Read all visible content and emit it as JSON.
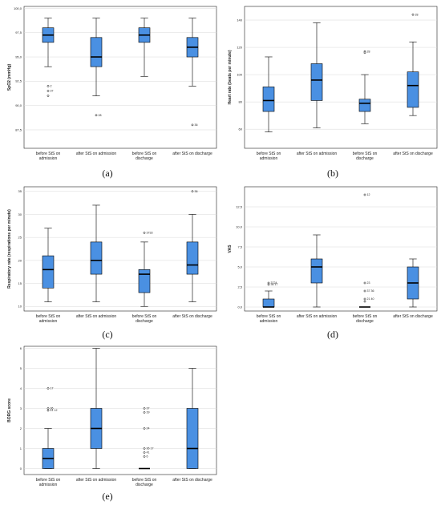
{
  "chart_data": [
    {
      "id": "a",
      "type": "box",
      "panel_label": "(a)",
      "ylabel": "SpO2 (mmHg)",
      "yticks": [
        87.5,
        90.0,
        92.5,
        95.0,
        97.5,
        100.0
      ],
      "ytick_labels": [
        "87,5",
        "90,0",
        "92,5",
        "95,0",
        "97,5",
        "100,0"
      ],
      "ylim": [
        85.6,
        100.2
      ],
      "categories": [
        "before StS on admission",
        "after StS on admission",
        "before StS on discharge",
        "after StS on discharge"
      ],
      "boxes": [
        {
          "q1": 96.5,
          "median": 97.25,
          "q3": 98.0,
          "whisker_low": 94.0,
          "whisker_high": 99.0
        },
        {
          "q1": 94.0,
          "median": 95.0,
          "q3": 97.0,
          "whisker_low": 91.0,
          "whisker_high": 99.0
        },
        {
          "q1": 96.5,
          "median": 97.25,
          "q3": 98.0,
          "whisker_low": 93.0,
          "whisker_high": 99.0
        },
        {
          "q1": 95.0,
          "median": 96.0,
          "q3": 97.0,
          "whisker_low": 92.0,
          "whisker_high": 99.0
        }
      ],
      "outliers": [
        {
          "category": 0,
          "value": 92.0,
          "label": "2"
        },
        {
          "category": 0,
          "value": 91.5,
          "label": "37"
        },
        {
          "category": 0,
          "value": 91.0,
          "label": ""
        },
        {
          "category": 1,
          "value": 89.0,
          "label": "28"
        },
        {
          "category": 3,
          "value": 88.0,
          "label": "36"
        }
      ]
    },
    {
      "id": "b",
      "type": "box",
      "panel_label": "(b)",
      "ylabel": "Heart rate (beats per minute)",
      "yticks": [
        60,
        80,
        100,
        120,
        140
      ],
      "ytick_labels": [
        "60",
        "80",
        "100",
        "120",
        "140"
      ],
      "ylim": [
        46,
        150
      ],
      "categories": [
        "before StS on admission",
        "after StS on admission",
        "before StS on discharge",
        "after StS on discharge"
      ],
      "boxes": [
        {
          "q1": 73,
          "median": 81,
          "q3": 91,
          "whisker_low": 58,
          "whisker_high": 113
        },
        {
          "q1": 81,
          "median": 96,
          "q3": 108,
          "whisker_low": 61,
          "whisker_high": 138
        },
        {
          "q1": 73,
          "median": 79,
          "q3": 82,
          "whisker_low": 64,
          "whisker_high": 100
        },
        {
          "q1": 76,
          "median": 92,
          "q3": 102,
          "whisker_low": 70,
          "whisker_high": 124
        }
      ],
      "outliers": [
        {
          "category": 2,
          "value": 117,
          "label": "28"
        },
        {
          "category": 2,
          "value": 116,
          "label": ""
        },
        {
          "category": 3,
          "value": 144,
          "label": "28"
        }
      ]
    },
    {
      "id": "c",
      "type": "box",
      "panel_label": "(c)",
      "ylabel": "Respiratory rate (respirations per minute)",
      "yticks": [
        10,
        15,
        20,
        25,
        30,
        35
      ],
      "ytick_labels": [
        "10",
        "15",
        "20",
        "25",
        "30",
        "35"
      ],
      "ylim": [
        9,
        36
      ],
      "categories": [
        "before StS on admission",
        "after StS on admission",
        "before StS on discharge",
        "after StS on discharge"
      ],
      "boxes": [
        {
          "q1": 14,
          "median": 18,
          "q3": 21,
          "whisker_low": 11,
          "whisker_high": 27
        },
        {
          "q1": 17,
          "median": 20,
          "q3": 24,
          "whisker_low": 11,
          "whisker_high": 32
        },
        {
          "q1": 13,
          "median": 17,
          "q3": 18,
          "whisker_low": 10,
          "whisker_high": 24
        },
        {
          "q1": 17,
          "median": 19,
          "q3": 24,
          "whisker_low": 11,
          "whisker_high": 30
        }
      ],
      "outliers": [
        {
          "category": 2,
          "value": 26,
          "label": "3733"
        },
        {
          "category": 3,
          "value": 35,
          "label": "36"
        }
      ]
    },
    {
      "id": "d",
      "type": "box",
      "panel_label": "(d)",
      "ylabel": "VAS",
      "yticks": [
        0.0,
        2.5,
        5.0,
        7.5,
        10.0,
        12.5
      ],
      "ytick_labels": [
        "0,0",
        "2,5",
        "5,0",
        "7,5",
        "10,0",
        "12,5"
      ],
      "ylim": [
        -0.5,
        15.0
      ],
      "categories": [
        "before StS on admission",
        "after StS on admission",
        "before StS on discharge",
        "after StS on discharge"
      ],
      "boxes": [
        {
          "q1": 0,
          "median": 0,
          "q3": 1,
          "whisker_low": 0,
          "whisker_high": 2
        },
        {
          "q1": 3,
          "median": 5,
          "q3": 6,
          "whisker_low": 0,
          "whisker_high": 9
        },
        {
          "q1": 0,
          "median": 0,
          "q3": 0,
          "whisker_low": 0,
          "whisker_high": 0
        },
        {
          "q1": 1,
          "median": 3,
          "q3": 5,
          "whisker_low": 0,
          "whisker_high": 6
        }
      ],
      "outliers": [
        {
          "category": 0,
          "value": 3,
          "label": "3724"
        },
        {
          "category": 0,
          "value": 2.8,
          "label": "36 17"
        },
        {
          "category": 2,
          "value": 14,
          "label": "12"
        },
        {
          "category": 2,
          "value": 3,
          "label": "23"
        },
        {
          "category": 2,
          "value": 2,
          "label": "37 36"
        },
        {
          "category": 2,
          "value": 1,
          "label": "21 40"
        },
        {
          "category": 2,
          "value": 0.7,
          "label": ""
        }
      ]
    },
    {
      "id": "e",
      "type": "box",
      "panel_label": "(e)",
      "ylabel": "BORG score",
      "yticks": [
        0,
        1,
        2,
        3,
        4,
        5,
        6
      ],
      "ytick_labels": [
        "0",
        "1",
        "2",
        "3",
        "4",
        "5",
        "6"
      ],
      "ylim": [
        -0.3,
        6.1
      ],
      "categories": [
        "before StS on admission",
        "after StS on admission",
        "before StS on discharge",
        "after StS on discharge"
      ],
      "boxes": [
        {
          "q1": 0,
          "median": 0.5,
          "q3": 1,
          "whisker_low": 0,
          "whisker_high": 2
        },
        {
          "q1": 1,
          "median": 2,
          "q3": 3,
          "whisker_low": 0,
          "whisker_high": 6
        },
        {
          "q1": 0,
          "median": 0,
          "q3": 0,
          "whisker_low": 0,
          "whisker_high": 0
        },
        {
          "q1": 0,
          "median": 1,
          "q3": 3,
          "whisker_low": 0,
          "whisker_high": 5
        }
      ],
      "outliers": [
        {
          "category": 0,
          "value": 4,
          "label": "17"
        },
        {
          "category": 0,
          "value": 3,
          "label": "36"
        },
        {
          "category": 0,
          "value": 2.9,
          "label": "41 12"
        },
        {
          "category": 2,
          "value": 3,
          "label": "37"
        },
        {
          "category": 2,
          "value": 2.8,
          "label": "39"
        },
        {
          "category": 2,
          "value": 2,
          "label": "24"
        },
        {
          "category": 2,
          "value": 1,
          "label": "36 17"
        },
        {
          "category": 2,
          "value": 0.8,
          "label": "41"
        },
        {
          "category": 2,
          "value": 0.6,
          "label": "6"
        }
      ]
    }
  ]
}
